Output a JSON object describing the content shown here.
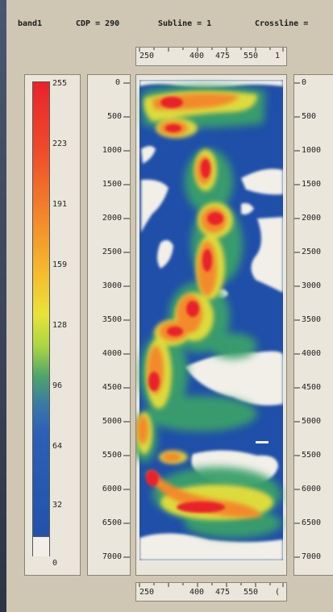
{
  "header": {
    "band_label": "band1",
    "cdp_label": "CDP = 290",
    "subline_label": "Subline = 1",
    "crossline_label": "Crossline ="
  },
  "top_axis": {
    "ticks": [
      "250",
      "400",
      "475",
      "550",
      "1"
    ]
  },
  "bottom_axis": {
    "ticks": [
      "250",
      "400",
      "475",
      "550",
      "("
    ]
  },
  "colorbar": {
    "labels": [
      "255",
      "223",
      "191",
      "159",
      "128",
      "96",
      "64",
      "32",
      "0"
    ],
    "colors": [
      "#e8232a",
      "#f07a2a",
      "#f4b82e",
      "#e6de3a",
      "#98cc44",
      "#3e9a6a",
      "#2e64b4",
      "#1f4fa8",
      "#f1efe8"
    ]
  },
  "depth_axis": {
    "ticks": [
      "0",
      "500",
      "1000",
      "1500",
      "2000",
      "2500",
      "3000",
      "3500",
      "4000",
      "4500",
      "5000",
      "5500",
      "6000",
      "6500",
      "7000"
    ],
    "right_ticks": [
      "0",
      "500",
      "1000",
      "1500",
      "2000",
      "2500",
      "3000",
      "3500",
      "4000",
      "4500",
      "5000",
      "5500",
      "6000",
      "6500",
      "7000"
    ]
  },
  "colors": {
    "panel_bg": "#cfc6b3",
    "box_bg": "#eae6dc",
    "section_bg": "#1f4fa8",
    "blank": "#f1efe8"
  }
}
